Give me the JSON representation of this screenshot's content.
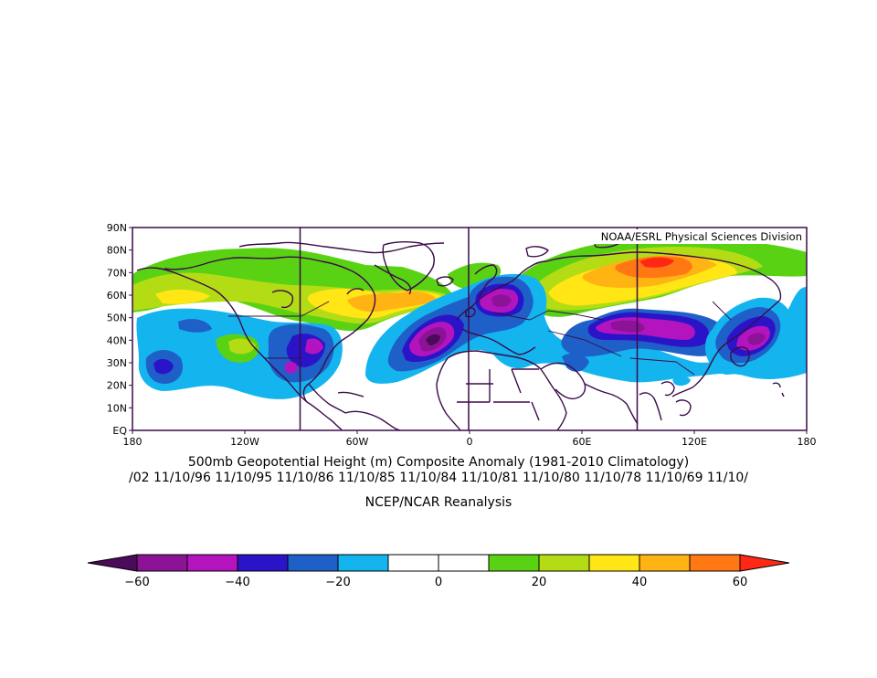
{
  "credit": "NOAA/ESRL Physical Sciences Division",
  "title": "500mb Geopotential Height (m) Composite Anomaly (1981-2010 Climatology)",
  "dates": "/02 11/10/96 11/10/95 11/10/86 11/10/85 11/10/84 11/10/81 11/10/80 11/10/78 11/10/69 11/10/",
  "source": "NCEP/NCAR Reanalysis",
  "lat_ticks": [
    "90N",
    "80N",
    "70N",
    "60N",
    "50N",
    "40N",
    "30N",
    "20N",
    "10N",
    "EQ"
  ],
  "lon_ticks": [
    "180",
    "120W",
    "60W",
    "0",
    "60E",
    "120E",
    "180"
  ],
  "colorbar": {
    "colors": [
      "#4b0a5a",
      "#8c1396",
      "#b414be",
      "#2b14c8",
      "#1f5fc8",
      "#14b4ee",
      "#ffffff",
      "#ffffff",
      "#5ad214",
      "#b4dc14",
      "#ffe614",
      "#ffb414",
      "#ff7814",
      "#ff2814"
    ],
    "labels": [
      "-60",
      "-40",
      "-20",
      "0",
      "20",
      "40",
      "60"
    ]
  },
  "chart_data": {
    "type": "heatmap",
    "title": "500mb Geopotential Height (m) Composite Anomaly (1981-2010 Climatology)",
    "variable": "500mb Geopotential Height Anomaly",
    "units": "m",
    "xlim": [
      -180,
      180
    ],
    "ylim": [
      0,
      90
    ],
    "contour_interval": 10,
    "color_range": [
      -60,
      60
    ],
    "anomaly_centers": [
      {
        "lon": -167,
        "lat": 27,
        "value": -30
      },
      {
        "lon": -137,
        "lat": 38,
        "value": 20
      },
      {
        "lon": -152,
        "lat": 62,
        "value": 30
      },
      {
        "lon": -92,
        "lat": 32,
        "value": -40
      },
      {
        "lon": -85,
        "lat": 38,
        "value": -40
      },
      {
        "lon": -35,
        "lat": 62,
        "value": 40
      },
      {
        "lon": -80,
        "lat": 62,
        "value": 40
      },
      {
        "lon": -15,
        "lat": 42,
        "value": -60
      },
      {
        "lon": 12,
        "lat": 57,
        "value": -50
      },
      {
        "lon": 70,
        "lat": 48,
        "value": -50
      },
      {
        "lon": 100,
        "lat": 75,
        "value": 60
      },
      {
        "lon": 40,
        "lat": 68,
        "value": 40
      },
      {
        "lon": 148,
        "lat": 42,
        "value": -50
      },
      {
        "lon": 55,
        "lat": 30,
        "value": -20
      }
    ]
  }
}
